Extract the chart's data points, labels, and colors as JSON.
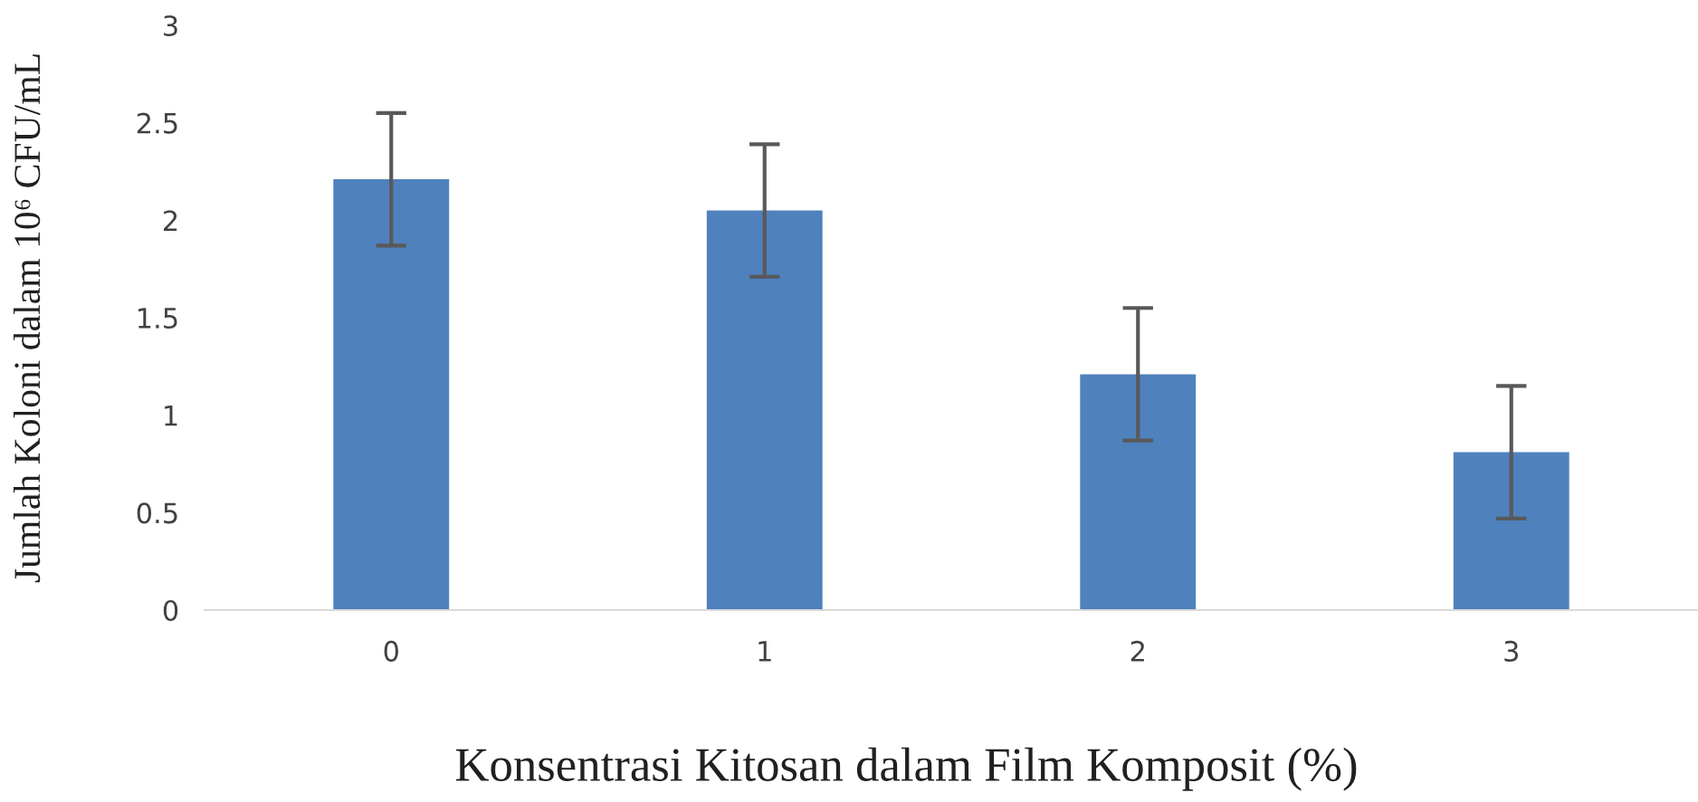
{
  "chart_data": {
    "type": "bar",
    "xlabel": "Konsentrasi Kitosan dalam Film Komposit (%)",
    "ylabel": "Jumlah Koloni dalam 10⁶ CFU/mL",
    "categories": [
      "0",
      "1",
      "2",
      "3"
    ],
    "values": [
      2.21,
      2.05,
      1.21,
      0.81
    ],
    "errors": [
      0.34,
      0.34,
      0.34,
      0.34
    ],
    "color": "#4f81bd",
    "ylim": [
      0,
      3
    ],
    "yticks": [
      0,
      0.5,
      1,
      1.5,
      2,
      2.5,
      3
    ],
    "grid": false
  }
}
